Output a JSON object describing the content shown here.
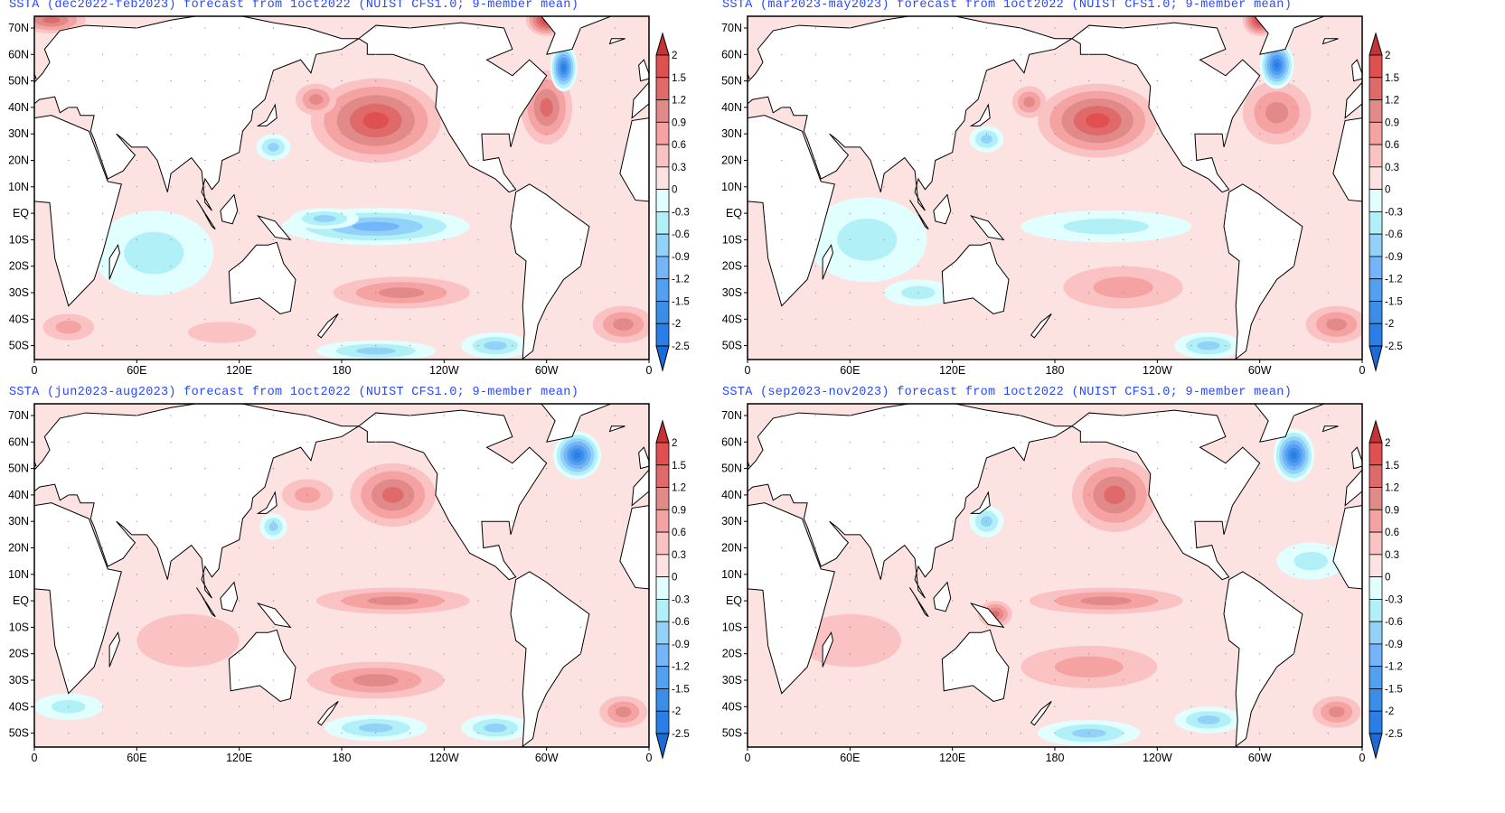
{
  "panels": [
    {
      "title": "SSTA (dec2022-feb2023) forecast from 1oct2022 (NUIST CFS1.0; 9-member mean)"
    },
    {
      "title": "SSTA (mar2023-may2023) forecast from 1oct2022 (NUIST CFS1.0; 9-member mean)"
    },
    {
      "title": "SSTA (jun2023-aug2023) forecast from 1oct2022 (NUIST CFS1.0; 9-member mean)"
    },
    {
      "title": "SSTA (sep2023-nov2023) forecast from 1oct2022 (NUIST CFS1.0; 9-member mean)"
    }
  ],
  "lat_ticks": [
    "70N",
    "60N",
    "50N",
    "40N",
    "30N",
    "20N",
    "10N",
    "EQ",
    "10S",
    "20S",
    "30S",
    "40S",
    "50S"
  ],
  "lon_ticks": [
    "0",
    "60E",
    "120E",
    "180",
    "120W",
    "60W",
    "0"
  ],
  "colorbar": {
    "labels": [
      "2",
      "1.5",
      "1.2",
      "0.9",
      "0.6",
      "0.3",
      "0",
      "-0.3",
      "-0.6",
      "-0.9",
      "-1.2",
      "-1.5",
      "-2",
      "-2.5"
    ],
    "colors": [
      "#c43434",
      "#e05050",
      "#e06a6a",
      "#e28a8a",
      "#f4a2a2",
      "#fac2c2",
      "#fde2e2",
      "#e2ffff",
      "#b2f0f8",
      "#92d2f8",
      "#74b4f8",
      "#52a0f0",
      "#3a8ee8",
      "#2a7ee8",
      "#1a6ad8"
    ]
  }
}
